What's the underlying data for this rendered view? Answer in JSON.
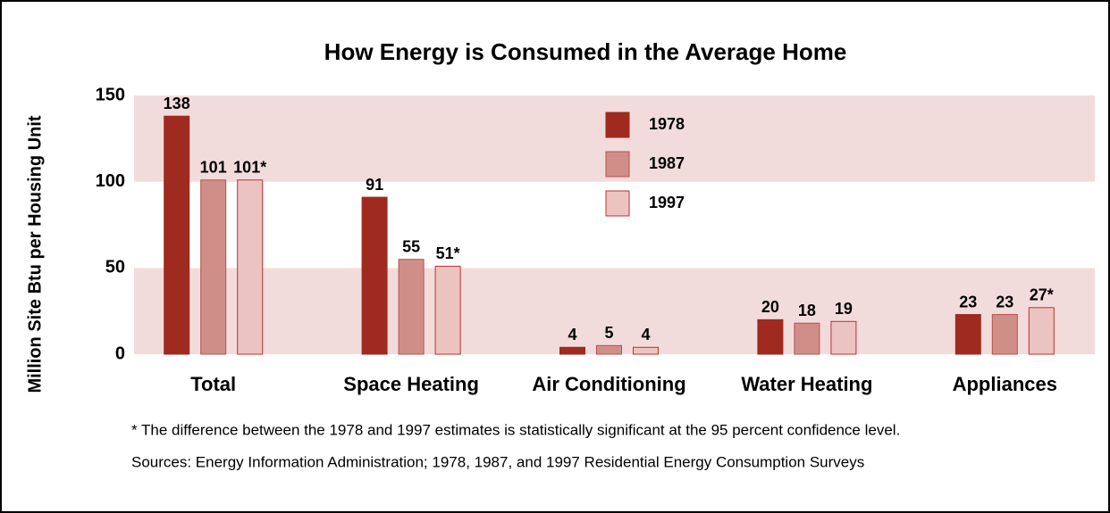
{
  "chart_data": {
    "type": "bar",
    "title": "How Energy is Consumed in the Average Home",
    "y_label": "Million Site Btu per Housing Unit",
    "categories": [
      "Total",
      "Space Heating",
      "Air Conditioning",
      "Water Heating",
      "Appliances"
    ],
    "series": [
      {
        "name": "1978",
        "color": "#9e2a20",
        "values": [
          138,
          91,
          4,
          20,
          23
        ],
        "value_labels": [
          "138",
          "91",
          "4",
          "20",
          "23"
        ]
      },
      {
        "name": "1987",
        "color": "#cf8f88",
        "values": [
          101,
          55,
          5,
          18,
          23
        ],
        "value_labels": [
          "101",
          "55",
          "5",
          "18",
          "23"
        ]
      },
      {
        "name": "1997",
        "color": "#ebc4c2",
        "values": [
          101,
          51,
          4,
          19,
          27
        ],
        "value_labels": [
          "101*",
          "51*",
          "4",
          "19",
          "27*"
        ]
      }
    ],
    "ylim": [
      0,
      150
    ],
    "yticks": [
      0,
      50,
      100,
      150
    ],
    "notes": [
      "* The difference between the 1978 and 1997 estimates is statistically significant at the 95 percent confidence level.",
      "Sources: Energy Information Administration; 1978, 1987, and 1997 Residential Energy Consumption Surveys"
    ]
  }
}
